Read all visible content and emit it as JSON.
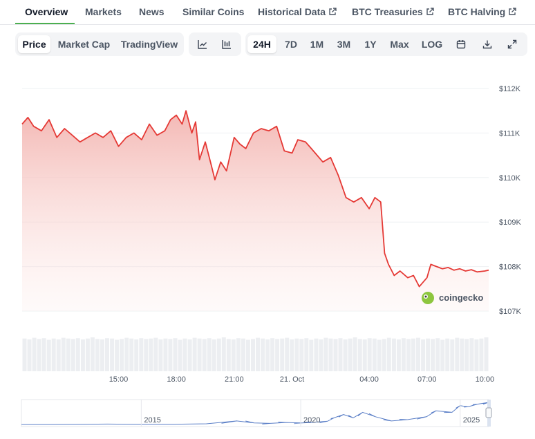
{
  "tabs": [
    {
      "label": "Overview",
      "active": true,
      "external": false
    },
    {
      "label": "Markets",
      "active": false,
      "external": false
    },
    {
      "label": "News",
      "active": false,
      "external": false
    },
    {
      "label": "Similar Coins",
      "active": false,
      "external": false
    },
    {
      "label": "Historical Data",
      "active": false,
      "external": true
    },
    {
      "label": "BTC Treasuries",
      "active": false,
      "external": true
    },
    {
      "label": "BTC Halving",
      "active": false,
      "external": true
    }
  ],
  "toolbar": {
    "metric": [
      "Price",
      "Market Cap",
      "TradingView"
    ],
    "active_metric": "Price",
    "chart_types": [
      {
        "icon": "line-chart-icon",
        "active": false
      },
      {
        "icon": "candlestick-chart-icon",
        "active": false
      }
    ],
    "ranges": [
      "24H",
      "7D",
      "1M",
      "3M",
      "1Y",
      "Max",
      "LOG"
    ],
    "active_range": "24H",
    "tools": [
      "calendar-icon",
      "download-icon",
      "expand-icon"
    ]
  },
  "brand": {
    "name": "coingecko"
  },
  "colors": {
    "line": "#e53935",
    "fill_top": "#f3b4b0",
    "grid": "#eef0f3",
    "accent_tab": "#4caf50",
    "navigator_line": "#5b7fc7"
  },
  "chart_data": {
    "type": "line",
    "title": "",
    "xlabel": "",
    "ylabel": "",
    "y_ticks": [
      "$112K",
      "$111K",
      "$110K",
      "$109K",
      "$108K",
      "$107K"
    ],
    "ylim": [
      107000,
      112200
    ],
    "x_ticks": [
      {
        "label": "15:00",
        "t": 5
      },
      {
        "label": "18:00",
        "t": 8
      },
      {
        "label": "21:00",
        "t": 11
      },
      {
        "label": "21. Oct",
        "t": 14
      },
      {
        "label": "04:00",
        "t": 18
      },
      {
        "label": "07:00",
        "t": 21
      },
      {
        "label": "10:00",
        "t": 24
      }
    ],
    "x_range_hours": [
      0,
      24.2
    ],
    "axis_position": "right",
    "grid": true,
    "series": [
      {
        "x": [
          0,
          0.3,
          0.6,
          1.0,
          1.4,
          1.8,
          2.2,
          2.6,
          3.0,
          3.4,
          3.8,
          4.2,
          4.6,
          5.0,
          5.4,
          5.8,
          6.2,
          6.6,
          7.0,
          7.4,
          7.7,
          8.0,
          8.3,
          8.5,
          8.8,
          9.0,
          9.2,
          9.5,
          9.8,
          10.0,
          10.3,
          10.6,
          11.0,
          11.3,
          11.6,
          12.0,
          12.4,
          12.8,
          13.2,
          13.6,
          14.0,
          14.3,
          14.7,
          15.0,
          15.3,
          15.6,
          16.0,
          16.4,
          16.8,
          17.2,
          17.6,
          18.0,
          18.3,
          18.6,
          18.8,
          19.0,
          19.3,
          19.6,
          20.0,
          20.3,
          20.6,
          20.8,
          21.0,
          21.2,
          21.5,
          21.8,
          22.1,
          22.4,
          22.7,
          23.0,
          23.3,
          23.6,
          24.0,
          24.2
        ],
        "y": [
          111200,
          111350,
          111150,
          111050,
          111300,
          110900,
          111100,
          110950,
          110800,
          110900,
          111000,
          110900,
          111050,
          110700,
          110900,
          111000,
          110850,
          111200,
          110950,
          111050,
          111300,
          111400,
          111200,
          111500,
          111000,
          111250,
          110400,
          110800,
          110300,
          109950,
          110350,
          110150,
          110900,
          110750,
          110650,
          111000,
          111100,
          111050,
          111150,
          110600,
          110550,
          110850,
          110800,
          110650,
          110500,
          110350,
          110450,
          110050,
          109550,
          109450,
          109550,
          109300,
          109550,
          109450,
          108300,
          108050,
          107800,
          107900,
          107750,
          107800,
          107550,
          107650,
          107750,
          108050,
          108000,
          107950,
          107980,
          107920,
          107950,
          107900,
          107930,
          107880,
          107900,
          107920
        ]
      }
    ],
    "volume": {
      "count": 96,
      "values": [
        0.82,
        0.8,
        0.84,
        0.81,
        0.83,
        0.79,
        0.82,
        0.8,
        0.84,
        0.82,
        0.81,
        0.83,
        0.8,
        0.82,
        0.85,
        0.81,
        0.8,
        0.83,
        0.82,
        0.79,
        0.81,
        0.84,
        0.82,
        0.8,
        0.83,
        0.81,
        0.82,
        0.84,
        0.8,
        0.82,
        0.81,
        0.83,
        0.79,
        0.82,
        0.8,
        0.84,
        0.82,
        0.81,
        0.83,
        0.8,
        0.82,
        0.85,
        0.81,
        0.8,
        0.83,
        0.82,
        0.79,
        0.81,
        0.84,
        0.82,
        0.8,
        0.83,
        0.81,
        0.82,
        0.84,
        0.8,
        0.82,
        0.81,
        0.83,
        0.79,
        0.82,
        0.8,
        0.84,
        0.82,
        0.81,
        0.83,
        0.8,
        0.82,
        0.85,
        0.81,
        0.8,
        0.83,
        0.82,
        0.79,
        0.81,
        0.84,
        0.82,
        0.8,
        0.83,
        0.81,
        0.82,
        0.84,
        0.8,
        0.82,
        0.81,
        0.83,
        0.79,
        0.82,
        0.8,
        0.84,
        0.82,
        0.81,
        0.83,
        0.8,
        0.82,
        0.85
      ]
    },
    "navigator": {
      "year_labels": [
        {
          "label": "2015",
          "year": 2015
        },
        {
          "label": "2020",
          "year": 2020
        },
        {
          "label": "2025",
          "year": 2025
        }
      ],
      "x_range_years": [
        2011.2,
        2025.85
      ],
      "points_year": [
        2011.2,
        2012,
        2013,
        2013.9,
        2014.5,
        2015,
        2016,
        2017,
        2017.95,
        2018.5,
        2019,
        2019.5,
        2020,
        2020.3,
        2020.8,
        2021.0,
        2021.3,
        2021.6,
        2021.9,
        2022.3,
        2022.8,
        2023.3,
        2023.9,
        2024.2,
        2024.7,
        2024.95,
        2025.2,
        2025.5,
        2025.85
      ],
      "points_level": [
        0,
        0,
        0.005,
        0.02,
        0.012,
        0.008,
        0.01,
        0.03,
        0.16,
        0.07,
        0.05,
        0.09,
        0.07,
        0.09,
        0.15,
        0.3,
        0.45,
        0.3,
        0.55,
        0.35,
        0.16,
        0.22,
        0.35,
        0.62,
        0.55,
        0.85,
        0.8,
        0.92,
        1.0
      ]
    }
  }
}
